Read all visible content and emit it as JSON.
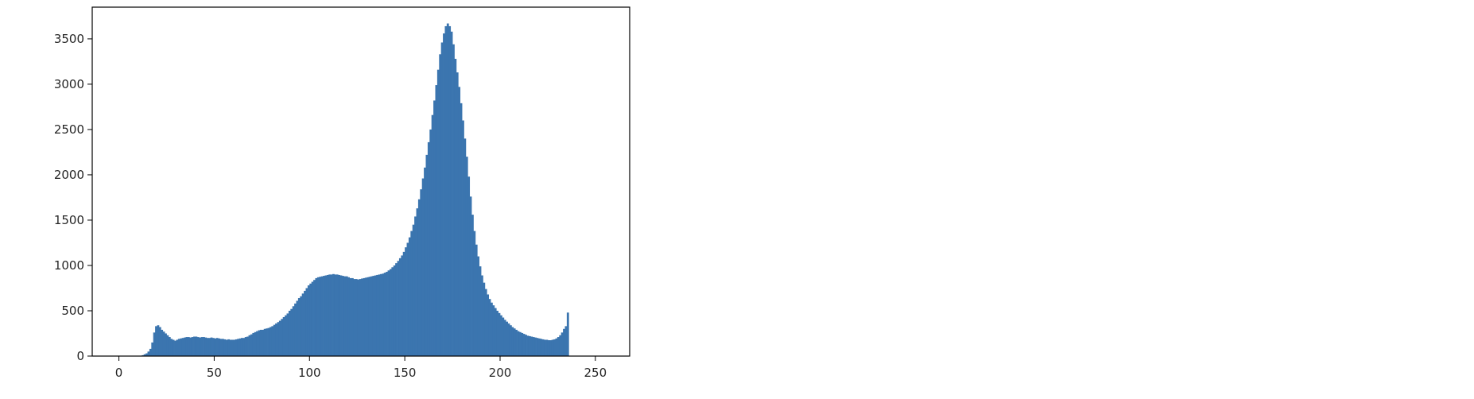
{
  "chart_data": {
    "type": "bar",
    "title": "",
    "xlabel": "",
    "ylabel": "",
    "xlim": [
      -14,
      268
    ],
    "ylim": [
      0,
      3850
    ],
    "grid": false,
    "legend": "none",
    "bar_color": "#3b75af",
    "xticks": [
      {
        "value": 0,
        "label": "0"
      },
      {
        "value": 50,
        "label": "50"
      },
      {
        "value": 100,
        "label": "100"
      },
      {
        "value": 150,
        "label": "150"
      },
      {
        "value": 200,
        "label": "200"
      },
      {
        "value": 250,
        "label": "250"
      }
    ],
    "yticks": [
      {
        "value": 0,
        "label": "0"
      },
      {
        "value": 500,
        "label": "500"
      },
      {
        "value": 1000,
        "label": "1000"
      },
      {
        "value": 1500,
        "label": "1500"
      },
      {
        "value": 2000,
        "label": "2000"
      },
      {
        "value": 2500,
        "label": "2500"
      },
      {
        "value": 3000,
        "label": "3000"
      },
      {
        "value": 3500,
        "label": "3500"
      }
    ],
    "bins_start": 0,
    "bin_width": 1,
    "values": [
      0,
      0,
      0,
      0,
      0,
      0,
      0,
      0,
      0,
      0,
      0,
      0,
      10,
      20,
      30,
      50,
      80,
      150,
      260,
      330,
      340,
      320,
      290,
      270,
      250,
      230,
      210,
      190,
      180,
      170,
      180,
      190,
      195,
      200,
      205,
      210,
      210,
      205,
      210,
      215,
      215,
      210,
      205,
      210,
      210,
      205,
      200,
      200,
      205,
      200,
      195,
      200,
      195,
      190,
      190,
      185,
      180,
      185,
      180,
      180,
      180,
      185,
      190,
      195,
      200,
      200,
      210,
      215,
      230,
      240,
      255,
      265,
      275,
      285,
      290,
      290,
      300,
      305,
      310,
      320,
      330,
      345,
      360,
      375,
      390,
      410,
      430,
      450,
      470,
      500,
      520,
      550,
      580,
      610,
      640,
      660,
      690,
      720,
      750,
      780,
      800,
      820,
      840,
      860,
      870,
      875,
      880,
      885,
      890,
      895,
      900,
      900,
      905,
      900,
      900,
      895,
      890,
      885,
      880,
      880,
      870,
      860,
      860,
      850,
      850,
      845,
      850,
      855,
      860,
      865,
      870,
      875,
      880,
      885,
      890,
      895,
      900,
      905,
      910,
      920,
      930,
      945,
      960,
      980,
      1000,
      1025,
      1050,
      1080,
      1110,
      1150,
      1200,
      1250,
      1310,
      1380,
      1450,
      1540,
      1630,
      1730,
      1840,
      1960,
      2080,
      2220,
      2360,
      2500,
      2660,
      2820,
      2990,
      3160,
      3330,
      3460,
      3560,
      3640,
      3670,
      3640,
      3580,
      3440,
      3280,
      3130,
      2970,
      2790,
      2600,
      2400,
      2200,
      1980,
      1760,
      1560,
      1380,
      1230,
      1100,
      990,
      890,
      810,
      740,
      680,
      630,
      590,
      560,
      530,
      500,
      475,
      450,
      425,
      400,
      380,
      360,
      340,
      320,
      305,
      290,
      275,
      265,
      255,
      245,
      235,
      225,
      220,
      215,
      210,
      205,
      200,
      195,
      190,
      185,
      180,
      180,
      175,
      175,
      180,
      185,
      195,
      210,
      230,
      260,
      300,
      330,
      480
    ]
  }
}
